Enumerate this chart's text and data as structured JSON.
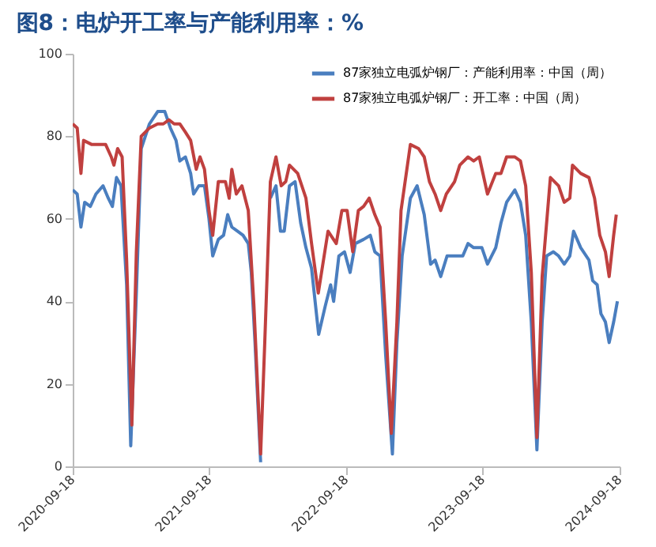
{
  "chart_data": {
    "type": "line",
    "title": "图8：电炉开工率与产能利用率：%",
    "xlim": [
      "2020-09-18",
      "2024-09-18"
    ],
    "xticks": [
      "2020-09-18",
      "2021-09-18",
      "2022-09-18",
      "2023-09-18",
      "2024-09-18"
    ],
    "ylim": [
      0,
      100
    ],
    "yticks": [
      0,
      20,
      40,
      60,
      80,
      100
    ],
    "grid": false,
    "legend": "top right",
    "marker": "none",
    "line_style": "solid",
    "series": [
      {
        "name": "87家独立电弧炉钢厂：产能利用率：中国（周）",
        "color": "#4a7ebf",
        "x": [
          "2020-09-18",
          "2020-09-30",
          "2020-10-10",
          "2020-10-20",
          "2020-11-04",
          "2020-11-19",
          "2020-12-08",
          "2020-12-22",
          "2021-01-02",
          "2021-01-13",
          "2021-01-25",
          "2021-02-09",
          "2021-02-20",
          "2021-03-07",
          "2021-03-20",
          "2021-04-11",
          "2021-05-03",
          "2021-05-22",
          "2021-06-06",
          "2021-06-21",
          "2021-07-01",
          "2021-07-16",
          "2021-07-30",
          "2021-08-07",
          "2021-08-21",
          "2021-09-05",
          "2021-09-17",
          "2021-09-27",
          "2021-10-12",
          "2021-10-26",
          "2021-11-06",
          "2021-11-17",
          "2021-12-02",
          "2021-12-17",
          "2021-12-31",
          "2022-01-08",
          "2022-01-18",
          "2022-02-02",
          "2022-02-13",
          "2022-02-28",
          "2022-03-15",
          "2022-03-27",
          "2022-04-06",
          "2022-04-20",
          "2022-05-05",
          "2022-05-20",
          "2022-06-03",
          "2022-06-18",
          "2022-07-07",
          "2022-07-25",
          "2022-08-08",
          "2022-08-16",
          "2022-08-30",
          "2022-09-14",
          "2022-09-29",
          "2022-10-13",
          "2022-11-04",
          "2022-11-22",
          "2022-12-04",
          "2022-12-18",
          "2023-01-02",
          "2023-01-20",
          "2023-02-01",
          "2023-02-15",
          "2023-03-09",
          "2023-03-27",
          "2023-04-15",
          "2023-05-02",
          "2023-05-14",
          "2023-05-29",
          "2023-06-15",
          "2023-07-05",
          "2023-07-27",
          "2023-08-10",
          "2023-08-25",
          "2023-09-16",
          "2023-10-01",
          "2023-10-23",
          "2023-11-06",
          "2023-11-21",
          "2023-12-13",
          "2023-12-28",
          "2024-01-11",
          "2024-01-26",
          "2024-02-10",
          "2024-02-24",
          "2024-03-07",
          "2024-03-25",
          "2024-04-08",
          "2024-04-23",
          "2024-05-08",
          "2024-05-18",
          "2024-06-06",
          "2024-06-28",
          "2024-07-08",
          "2024-07-20",
          "2024-07-30",
          "2024-08-11",
          "2024-08-21",
          "2024-09-02",
          "2024-09-12"
        ],
        "values": [
          67,
          66,
          58,
          64,
          63,
          66,
          68,
          65,
          63,
          70,
          68,
          44,
          5,
          42,
          77,
          83,
          86,
          86,
          82,
          79,
          74,
          75,
          71,
          66,
          68,
          68,
          60,
          51,
          55,
          56,
          61,
          58,
          57,
          56,
          54,
          47,
          30,
          1,
          null,
          65,
          68,
          57,
          57,
          68,
          69,
          59,
          53,
          48,
          32,
          39,
          44,
          40,
          51,
          52,
          47,
          54,
          55,
          56,
          52,
          51,
          27,
          3,
          30,
          51,
          65,
          68,
          61,
          49,
          50,
          46,
          51,
          51,
          51,
          54,
          53,
          53,
          49,
          53,
          59,
          64,
          67,
          64,
          56,
          35,
          4,
          35,
          51,
          52,
          51,
          49,
          51,
          57,
          53,
          50,
          45,
          44,
          37,
          35,
          30,
          35,
          40
        ]
      },
      {
        "name": "87家独立电弧炉钢厂：开工率：中国（周）",
        "color": "#c0403f",
        "x": [
          "2020-09-18",
          "2020-09-30",
          "2020-10-10",
          "2020-10-17",
          "2020-11-08",
          "2020-11-30",
          "2020-12-15",
          "2020-12-30",
          "2021-01-06",
          "2021-01-16",
          "2021-01-28",
          "2021-02-09",
          "2021-02-23",
          "2021-03-07",
          "2021-03-20",
          "2021-04-11",
          "2021-05-03",
          "2021-05-18",
          "2021-06-02",
          "2021-06-16",
          "2021-07-01",
          "2021-07-16",
          "2021-07-30",
          "2021-08-14",
          "2021-08-24",
          "2021-09-05",
          "2021-09-17",
          "2021-09-27",
          "2021-10-12",
          "2021-10-31",
          "2021-11-10",
          "2021-11-17",
          "2021-11-29",
          "2021-12-14",
          "2021-12-31",
          "2022-01-15",
          "2022-02-02",
          "2022-02-13",
          "2022-02-28",
          "2022-03-15",
          "2022-03-29",
          "2022-04-10",
          "2022-04-20",
          "2022-05-12",
          "2022-06-03",
          "2022-06-18",
          "2022-07-06",
          "2022-08-01",
          "2022-08-23",
          "2022-09-07",
          "2022-09-21",
          "2022-10-06",
          "2022-10-21",
          "2022-11-04",
          "2022-11-19",
          "2022-12-04",
          "2022-12-18",
          "2023-01-02",
          "2023-01-17",
          "2023-02-01",
          "2023-02-12",
          "2023-03-09",
          "2023-03-31",
          "2023-04-15",
          "2023-04-29",
          "2023-05-14",
          "2023-05-29",
          "2023-06-13",
          "2023-07-05",
          "2023-07-19",
          "2023-08-10",
          "2023-08-25",
          "2023-09-09",
          "2023-10-01",
          "2023-10-23",
          "2023-11-06",
          "2023-11-21",
          "2023-12-13",
          "2023-12-28",
          "2024-01-11",
          "2024-01-26",
          "2024-02-10",
          "2024-02-24",
          "2024-03-17",
          "2024-04-08",
          "2024-04-23",
          "2024-05-08",
          "2024-05-15",
          "2024-06-06",
          "2024-06-28",
          "2024-07-13",
          "2024-07-27",
          "2024-08-11",
          "2024-08-21",
          "2024-09-02",
          "2024-09-09"
        ],
        "values": [
          83,
          82,
          71,
          79,
          78,
          78,
          78,
          75,
          73,
          77,
          75,
          50,
          10,
          52,
          80,
          82,
          83,
          83,
          84,
          83,
          83,
          81,
          79,
          72,
          75,
          72,
          62,
          56,
          69,
          69,
          65,
          72,
          66,
          68,
          62,
          39,
          3,
          30,
          69,
          75,
          68,
          69,
          73,
          71,
          65,
          54,
          42,
          57,
          54,
          62,
          62,
          52,
          62,
          63,
          65,
          61,
          58,
          35,
          8,
          35,
          62,
          78,
          77,
          75,
          69,
          66,
          62,
          66,
          69,
          73,
          75,
          74,
          75,
          66,
          71,
          71,
          75,
          75,
          74,
          68,
          47,
          7,
          46,
          70,
          68,
          64,
          65,
          73,
          71,
          70,
          65,
          56,
          52,
          46,
          56,
          61
        ]
      }
    ]
  }
}
